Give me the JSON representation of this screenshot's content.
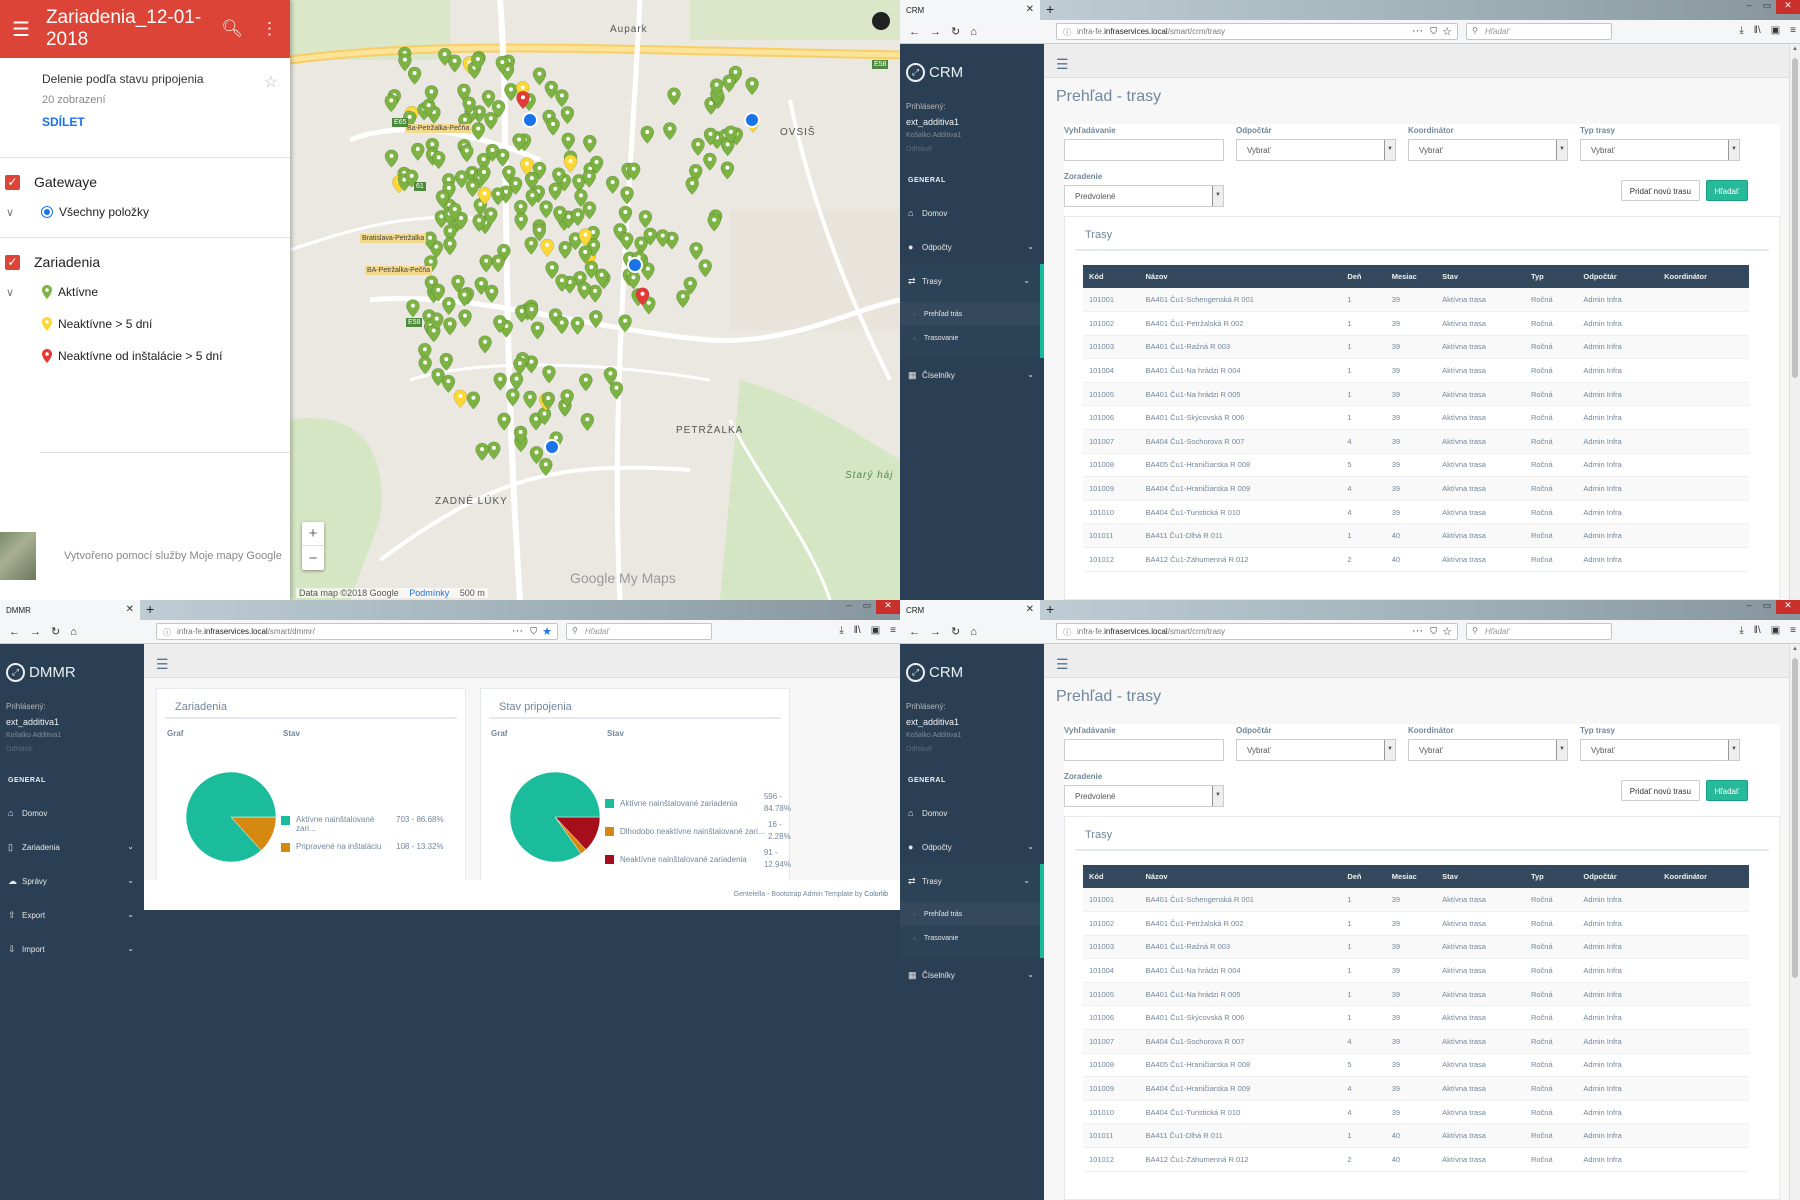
{
  "mymaps": {
    "title": "Zariadenia_12-01-2018",
    "description": "Delenie podľa stavu pripojenia",
    "views": "20 zobrazení",
    "share": "SDÍLET",
    "layers": [
      {
        "name": "Gatewaye",
        "items": [
          {
            "label": "Všechny položky",
            "marker": "blue-dot"
          }
        ]
      },
      {
        "name": "Zariadenia",
        "items": [
          {
            "label": "Aktívne",
            "color": "#7cb342"
          },
          {
            "label": "Neaktívne > 5 dní",
            "color": "#fdd835"
          },
          {
            "label": "Neaktívne od inštalácie > 5 dní",
            "color": "#e53935"
          }
        ]
      }
    ],
    "footer": "Vytvořeno pomocí služby Moje mapy Google",
    "map_attribution": "Data map ©2018 Google",
    "map_terms": "Podmínky",
    "map_scale": "500 m",
    "map_brand": "Google My Maps",
    "places": [
      "Aupark",
      "OVSIŠ",
      "ZADNÉ LÚKY",
      "PETRŽALKA",
      "Starý háj",
      "Ba-Petržalka-Pečňa",
      "Bratislava-Petržalka",
      "BA-Petržalka-Pečňa"
    ],
    "roads": [
      "E58",
      "E65",
      "61",
      "E58"
    ]
  },
  "crm": {
    "tab_title": "CRM",
    "url_prefix": "infra-fe.",
    "url_host": "infraservices.local",
    "url_path": "/smart/crm/trasy",
    "search_placeholder": "Hľadať",
    "brand": "CRM",
    "profile": {
      "label": "Prihlásený:",
      "user": "ext_additiva1",
      "org": "Košalko Additiva1",
      "logout": "Odhlásiť"
    },
    "section": "GENERAL",
    "menu": {
      "home": "Domov",
      "readers": "Odpočty",
      "routes": "Trasy",
      "routes_overview": "Prehľad trás",
      "routing": "Trasovanie",
      "codelists": "Číselníky"
    },
    "page_title": "Prehľad - trasy",
    "filters": {
      "search_label": "Vyhľadávanie",
      "reader_label": "Odpočtár",
      "reader_value": "Vybrať",
      "coordinator_label": "Koordinátor",
      "coordinator_value": "Vybrať",
      "type_label": "Typ trasy",
      "type_value": "Vybrať",
      "sort_label": "Zoradenie",
      "sort_value": "Predvolené"
    },
    "btn_add": "Pridať novú trasu",
    "btn_find": "Hľadať",
    "panel_title": "Trasy",
    "columns": [
      "Kód",
      "Názov",
      "Deň",
      "Mesiac",
      "Stav",
      "Typ",
      "Odpočtár",
      "Koordinátor"
    ],
    "rows": [
      [
        "101001",
        "BA401 Ču1-Schengenská R 001",
        "1",
        "39",
        "Aktívna trasa",
        "Ročná",
        "Admin Infra",
        ""
      ],
      [
        "101002",
        "BA401 Ču1-Petržalská R 002",
        "1",
        "39",
        "Aktívna trasa",
        "Ročná",
        "Admin Infra",
        ""
      ],
      [
        "101003",
        "BA401 Ču1-Ražná R 003",
        "1",
        "39",
        "Aktívna trasa",
        "Ročná",
        "Admin Infra",
        ""
      ],
      [
        "101004",
        "BA401 Ču1-Na hrádzi R 004",
        "1",
        "39",
        "Aktívna trasa",
        "Ročná",
        "Admin Infra",
        ""
      ],
      [
        "101005",
        "BA401 Ču1-Na hrádzi R 005",
        "1",
        "39",
        "Aktívna trasa",
        "Ročná",
        "Admin Infra",
        ""
      ],
      [
        "101006",
        "BA401 Ču1-Skýcovská R 006",
        "1",
        "39",
        "Aktívna trasa",
        "Ročná",
        "Admin Infra",
        ""
      ],
      [
        "101007",
        "BA404 Ču1-Sochorova R 007",
        "4",
        "39",
        "Aktívna trasa",
        "Ročná",
        "Admin Infra",
        ""
      ],
      [
        "101008",
        "BA405 Ču1-Hraničiarska R 008",
        "5",
        "39",
        "Aktívna trasa",
        "Ročná",
        "Admin Infra",
        ""
      ],
      [
        "101009",
        "BA404 Ču1-Hraničiarska R 009",
        "4",
        "39",
        "Aktívna trasa",
        "Ročná",
        "Admin Infra",
        ""
      ],
      [
        "101010",
        "BA404 Ču1-Turistická R 010",
        "4",
        "39",
        "Aktívna trasa",
        "Ročná",
        "Admin Infra",
        ""
      ],
      [
        "101011",
        "BA411 Ču1-Dlhá R 011",
        "1",
        "40",
        "Aktívna trasa",
        "Ročná",
        "Admin Infra",
        ""
      ],
      [
        "101012",
        "BA412 Ču1-Záhumenná R 012",
        "2",
        "40",
        "Aktívna trasa",
        "Ročná",
        "Admin Infra",
        ""
      ]
    ]
  },
  "dmmr": {
    "tab_title": "DMMR",
    "url_prefix": "infra-fe.",
    "url_host": "infraservices.local",
    "url_path": "/smart/dmmr/",
    "search_placeholder": "Hľadať",
    "brand": "DMMR",
    "profile": {
      "label": "Prihlásený:",
      "user": "ext_additiva1",
      "org": "Košalko Additiva1",
      "logout": "Odhlásiť"
    },
    "section": "GENERAL",
    "menu": {
      "home": "Domov",
      "devices": "Zariadenia",
      "reports": "Správy",
      "export": "Export",
      "import": "Import"
    },
    "card1": {
      "title": "Zariadenia",
      "col_graph": "Graf",
      "col_state": "Stav",
      "legend": [
        {
          "label": "Aktívne nainštalované zari...",
          "value": "703 - 86.68%",
          "color": "#1abc9c",
          "share": 86.68
        },
        {
          "label": "Pripravené na inštaláciu",
          "value": "108 - 13.32%",
          "color": "#d68910",
          "share": 13.32
        }
      ]
    },
    "card2": {
      "title": "Stav pripojenia",
      "col_graph": "Graf",
      "col_state": "Stav",
      "legend": [
        {
          "label": "Aktívne nainštalované zariadenia",
          "value_a": "596 -",
          "value_b": "84.78%",
          "color": "#1abc9c",
          "share": 84.78
        },
        {
          "label": "Dlhodobo neaktívne nainštalované zari...",
          "value_a": "16 -",
          "value_b": "2.28%",
          "color": "#d68910",
          "share": 2.28
        },
        {
          "label": "Neaktívne nainštalované zariadenia",
          "value_a": "91 -",
          "value_b": "12.94%",
          "color": "#a50e1a",
          "share": 12.94
        }
      ]
    },
    "footer_text": "Gentelella - Bootstrap Admin Template by ",
    "footer_link": "Colorlib"
  }
}
